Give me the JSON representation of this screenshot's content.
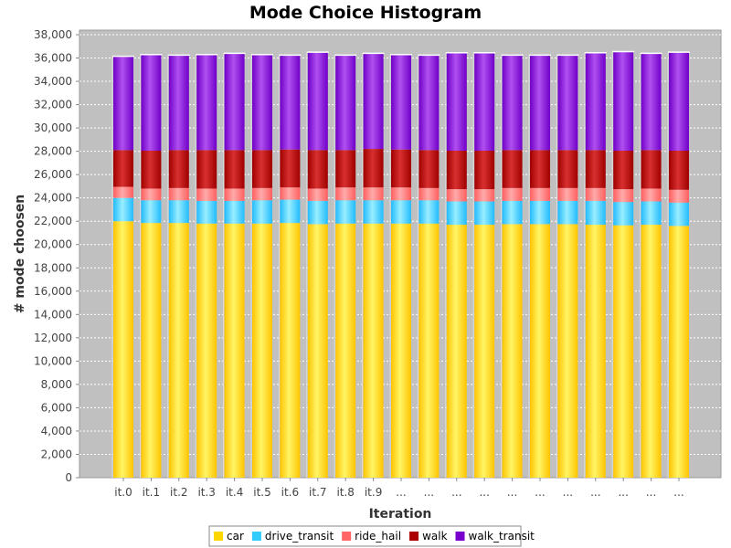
{
  "chart_data": {
    "type": "bar",
    "stacked": true,
    "title": "Mode Choice Histogram",
    "xlabel": "Iteration",
    "ylabel": "# mode choosen",
    "categories": [
      "it.0",
      "it.1",
      "it.2",
      "it.3",
      "it.4",
      "it.5",
      "it.6",
      "it.7",
      "it.8",
      "it.9",
      "...",
      "...",
      "...",
      "...",
      "...",
      "...",
      "...",
      "...",
      "...",
      "...",
      "..."
    ],
    "ylim": [
      0,
      38000
    ],
    "yticks": [
      0,
      2000,
      4000,
      6000,
      8000,
      10000,
      12000,
      14000,
      16000,
      18000,
      20000,
      22000,
      24000,
      26000,
      28000,
      30000,
      32000,
      34000,
      36000,
      38000
    ],
    "ytick_labels": [
      "0",
      "2,000",
      "4,000",
      "6,000",
      "8,000",
      "10,000",
      "12,000",
      "14,000",
      "16,000",
      "18,000",
      "20,000",
      "22,000",
      "24,000",
      "26,000",
      "28,000",
      "30,000",
      "32,000",
      "34,000",
      "36,000",
      "38,000"
    ],
    "grid": true,
    "legend_position": "bottom",
    "series": [
      {
        "name": "car",
        "color": "#FFD700",
        "values": [
          22000,
          21850,
          21850,
          21800,
          21800,
          21800,
          21850,
          21750,
          21800,
          21800,
          21800,
          21800,
          21700,
          21700,
          21750,
          21750,
          21750,
          21700,
          21650,
          21700,
          21600
        ]
      },
      {
        "name": "drive_transit",
        "color": "#33CCFF",
        "values": [
          2000,
          1950,
          1950,
          1950,
          1950,
          2000,
          2000,
          2000,
          2000,
          2000,
          2000,
          2000,
          2000,
          2000,
          2000,
          2000,
          2000,
          2050,
          2000,
          2000,
          2000
        ]
      },
      {
        "name": "ride_hail",
        "color": "#FF6666",
        "values": [
          950,
          1000,
          1050,
          1050,
          1050,
          1050,
          1050,
          1050,
          1100,
          1100,
          1100,
          1050,
          1050,
          1050,
          1100,
          1100,
          1100,
          1100,
          1100,
          1100,
          1100
        ]
      },
      {
        "name": "walk",
        "color": "#AA0000",
        "values": [
          3150,
          3250,
          3250,
          3300,
          3300,
          3250,
          3250,
          3300,
          3200,
          3300,
          3250,
          3250,
          3300,
          3300,
          3250,
          3250,
          3250,
          3250,
          3300,
          3300,
          3350
        ]
      },
      {
        "name": "walk_transit",
        "color": "#7700CC",
        "values": [
          8050,
          8250,
          8150,
          8200,
          8300,
          8200,
          8100,
          8400,
          8150,
          8200,
          8150,
          8150,
          8400,
          8400,
          8150,
          8150,
          8150,
          8350,
          8500,
          8300,
          8450
        ]
      }
    ]
  }
}
